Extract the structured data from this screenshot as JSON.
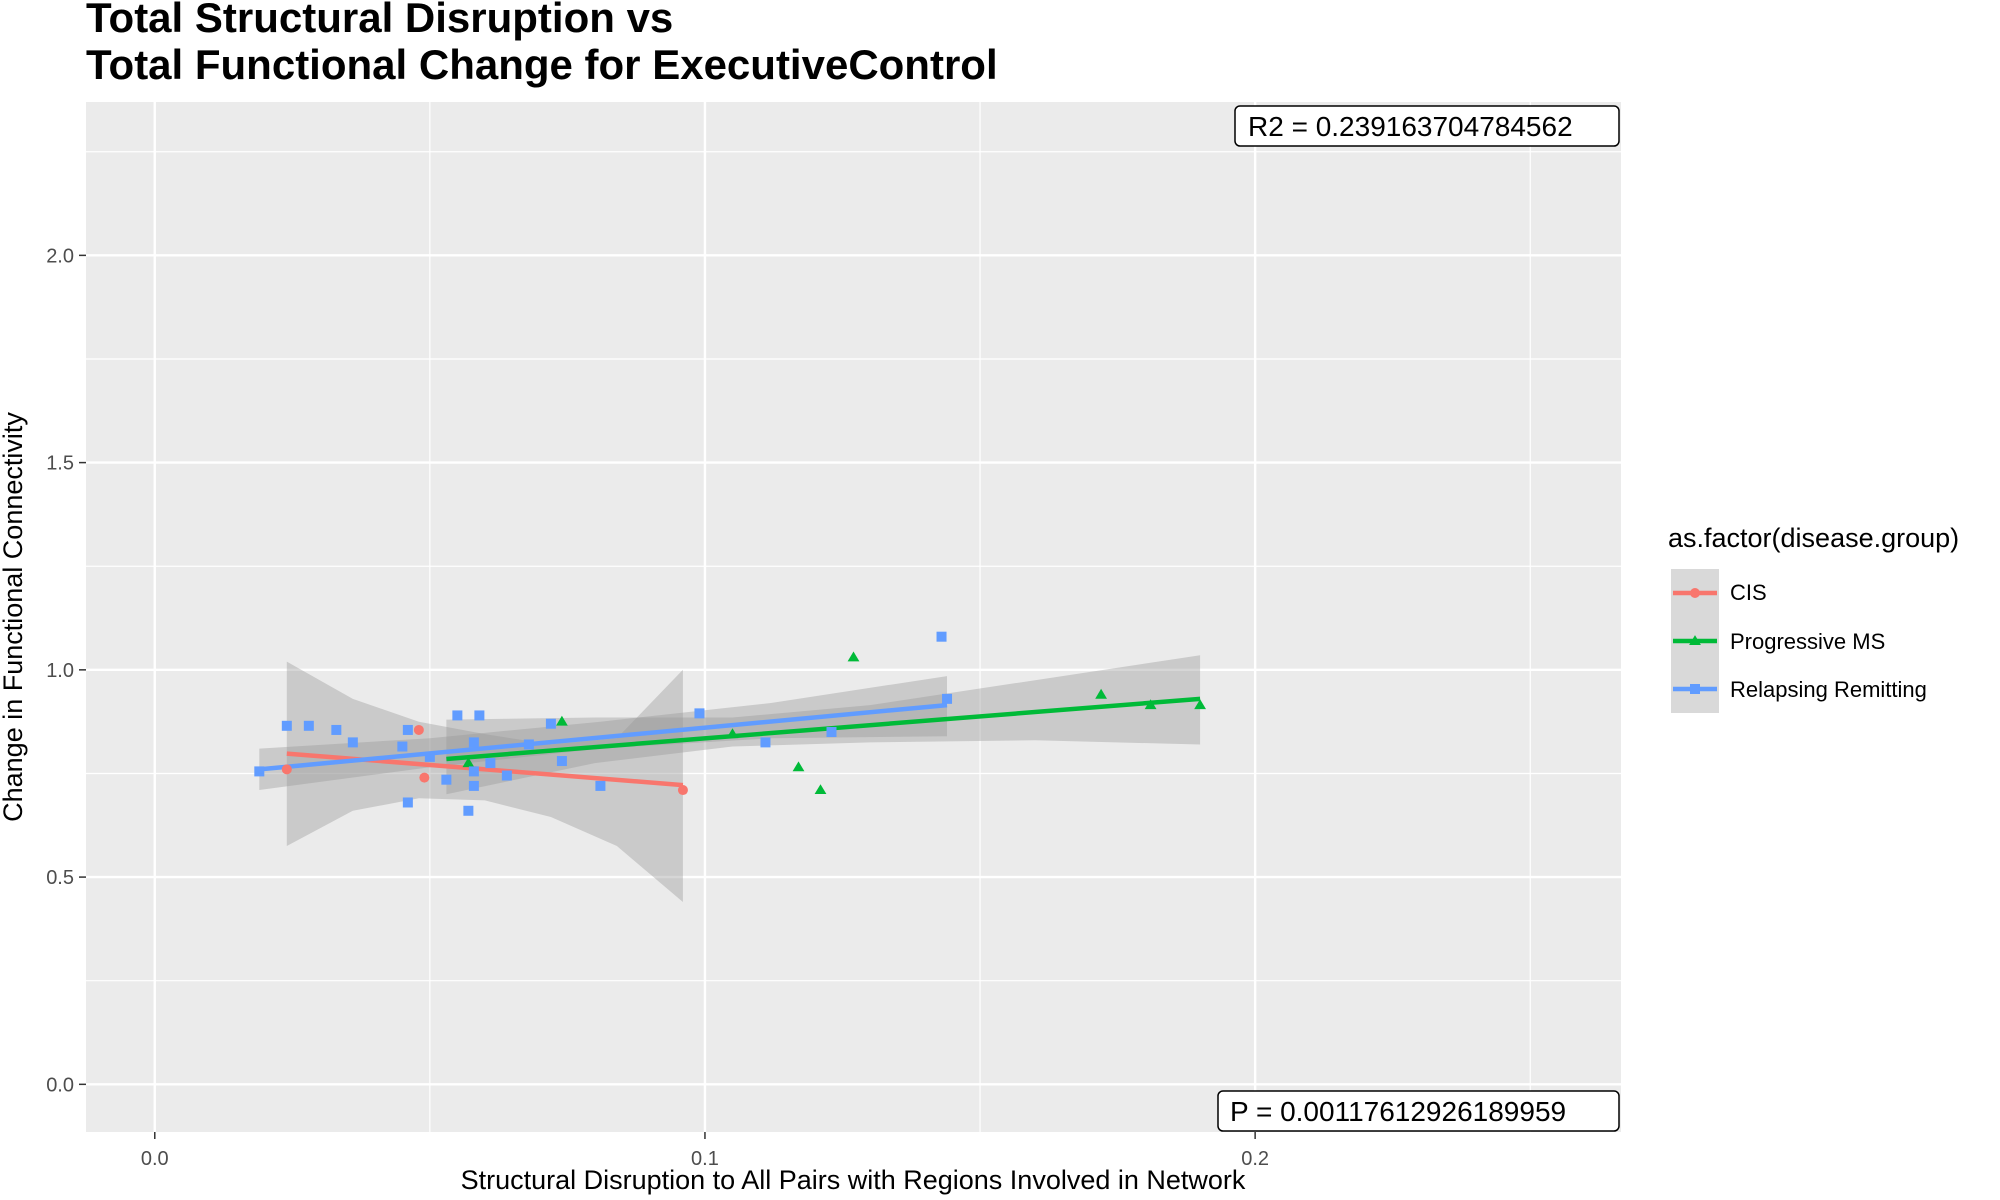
{
  "chart_data": {
    "type": "scatter",
    "title": [
      "Total Structural Disruption vs",
      "Total Functional Change for ExecutiveControl"
    ],
    "xlabel": "Structural Disruption to All Pairs with Regions Involved in Network",
    "ylabel": "Change in Functional Connectivity",
    "xlim": [
      -0.0125,
      0.2665
    ],
    "ylim": [
      -0.115,
      2.37
    ],
    "x_ticks": [
      0.0,
      0.1,
      0.2
    ],
    "x_tick_labels": [
      "0.0",
      "0.1",
      "0.2"
    ],
    "y_ticks": [
      0.0,
      0.5,
      1.0,
      1.5,
      2.0
    ],
    "y_tick_labels": [
      "0.0",
      "0.5",
      "1.0",
      "1.5",
      "2.0"
    ],
    "grid": true,
    "legend": {
      "title": "as.factor(disease.group)",
      "position": "right",
      "entries": [
        "CIS",
        "Progressive MS",
        "Relapsing Remitting"
      ]
    },
    "annotations": {
      "r2": "R2 =  0.239163704784562",
      "p": "P =  0.00117612926189959"
    },
    "series": [
      {
        "name": "CIS",
        "color": "#F8766D",
        "shape": "circle",
        "points": [
          [
            0.024,
            0.76
          ],
          [
            0.048,
            0.855
          ],
          [
            0.049,
            0.74
          ],
          [
            0.096,
            0.71
          ]
        ],
        "fit": {
          "x": [
            0.024,
            0.096
          ],
          "y": [
            0.798,
            0.722
          ]
        },
        "band": {
          "x": [
            0.024,
            0.036,
            0.048,
            0.06,
            0.072,
            0.084,
            0.096
          ],
          "lower": [
            0.575,
            0.66,
            0.69,
            0.685,
            0.645,
            0.575,
            0.44
          ],
          "upper": [
            1.02,
            0.93,
            0.875,
            0.845,
            0.82,
            0.835,
            1.0
          ]
        }
      },
      {
        "name": "Progressive MS",
        "color": "#00BA38",
        "shape": "triangle",
        "points": [
          [
            0.057,
            0.775
          ],
          [
            0.074,
            0.875
          ],
          [
            0.105,
            0.845
          ],
          [
            0.117,
            0.765
          ],
          [
            0.121,
            0.71
          ],
          [
            0.127,
            1.03
          ],
          [
            0.172,
            0.94
          ],
          [
            0.181,
            0.915
          ],
          [
            0.19,
            0.915
          ]
        ],
        "fit": {
          "x": [
            0.053,
            0.19
          ],
          "y": [
            0.785,
            0.93
          ]
        },
        "band": {
          "x": [
            0.053,
            0.08,
            0.105,
            0.13,
            0.16,
            0.19
          ],
          "lower": [
            0.7,
            0.775,
            0.815,
            0.825,
            0.83,
            0.82
          ],
          "upper": [
            0.88,
            0.885,
            0.885,
            0.915,
            0.975,
            1.035
          ]
        }
      },
      {
        "name": "Relapsing Remitting",
        "color": "#619CFF",
        "shape": "square",
        "points": [
          [
            0.019,
            0.755
          ],
          [
            0.024,
            0.865
          ],
          [
            0.028,
            0.865
          ],
          [
            0.033,
            0.855
          ],
          [
            0.036,
            0.825
          ],
          [
            0.045,
            0.815
          ],
          [
            0.046,
            0.855
          ],
          [
            0.046,
            0.68
          ],
          [
            0.05,
            0.79
          ],
          [
            0.053,
            0.735
          ],
          [
            0.055,
            0.89
          ],
          [
            0.057,
            0.66
          ],
          [
            0.058,
            0.72
          ],
          [
            0.058,
            0.825
          ],
          [
            0.058,
            0.755
          ],
          [
            0.059,
            0.89
          ],
          [
            0.061,
            0.775
          ],
          [
            0.064,
            0.745
          ],
          [
            0.068,
            0.82
          ],
          [
            0.072,
            0.87
          ],
          [
            0.074,
            0.78
          ],
          [
            0.081,
            0.72
          ],
          [
            0.099,
            0.895
          ],
          [
            0.111,
            0.825
          ],
          [
            0.123,
            0.85
          ],
          [
            0.143,
            1.08
          ],
          [
            0.144,
            0.93
          ]
        ],
        "fit": {
          "x": [
            0.019,
            0.144
          ],
          "y": [
            0.76,
            0.915
          ]
        },
        "band": {
          "x": [
            0.019,
            0.05,
            0.081,
            0.112,
            0.144
          ],
          "lower": [
            0.71,
            0.765,
            0.81,
            0.835,
            0.84
          ],
          "upper": [
            0.81,
            0.835,
            0.875,
            0.92,
            0.985
          ]
        }
      }
    ]
  }
}
